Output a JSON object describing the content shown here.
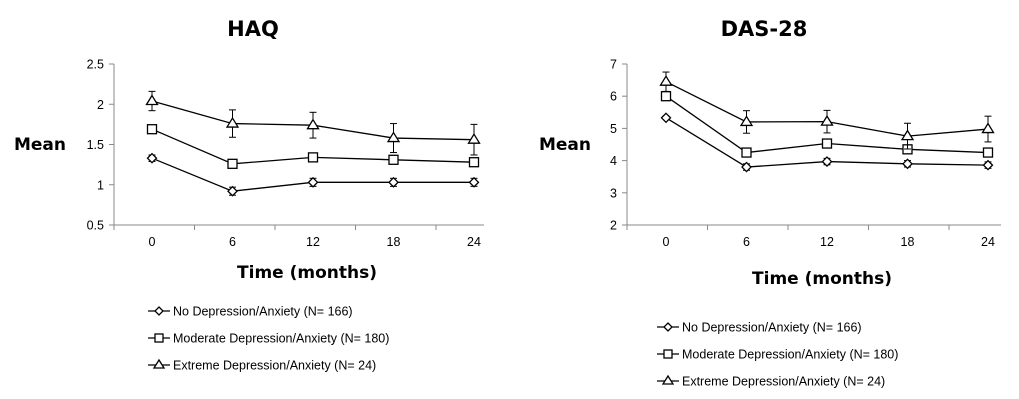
{
  "chart_data": [
    {
      "type": "line",
      "title": "HAQ",
      "xlabel": "Time (months)",
      "ylabel": "Mean",
      "x": [
        0,
        6,
        12,
        18,
        24
      ],
      "ylim": [
        0.5,
        2.5
      ],
      "yticks": [
        "0.5",
        "1",
        "1.5",
        "2",
        "2.5"
      ],
      "xticks": [
        "0",
        "6",
        "12",
        "18",
        "24"
      ],
      "grid": false,
      "legend_position": "bottom",
      "series": [
        {
          "name": "No Depression/Anxiety (N= 166)",
          "marker": "diamond",
          "values": [
            1.33,
            0.92,
            1.03,
            1.03,
            1.03
          ],
          "error": [
            0.04,
            0.05,
            0.05,
            0.05,
            0.05
          ]
        },
        {
          "name": "Moderate Depression/Anxiety (N= 180)",
          "marker": "square",
          "values": [
            1.69,
            1.26,
            1.34,
            1.31,
            1.28
          ],
          "error": [
            0.0,
            0.0,
            0.0,
            0.0,
            0.0
          ]
        },
        {
          "name": "Extreme Depression/Anxiety (N= 24)",
          "marker": "triangle",
          "values": [
            2.04,
            1.76,
            1.74,
            1.58,
            1.56
          ],
          "error": [
            0.12,
            0.17,
            0.16,
            0.18,
            0.19
          ]
        }
      ]
    },
    {
      "type": "line",
      "title": "DAS-28",
      "xlabel": "Time (months)",
      "ylabel": "Mean",
      "x": [
        0,
        6,
        12,
        18,
        24
      ],
      "ylim": [
        2,
        7
      ],
      "yticks": [
        "2",
        "3",
        "4",
        "5",
        "6",
        "7"
      ],
      "xticks": [
        "0",
        "6",
        "12",
        "18",
        "24"
      ],
      "grid": false,
      "legend_position": "bottom",
      "series": [
        {
          "name": "No Depression/Anxiety (N= 166)",
          "marker": "diamond",
          "values": [
            5.33,
            3.8,
            3.97,
            3.9,
            3.86
          ],
          "error": [
            0.05,
            0.1,
            0.1,
            0.1,
            0.1
          ]
        },
        {
          "name": "Moderate Depression/Anxiety (N= 180)",
          "marker": "square",
          "values": [
            6.0,
            4.25,
            4.53,
            4.35,
            4.25
          ],
          "error": [
            0.0,
            0.0,
            0.0,
            0.0,
            0.0
          ]
        },
        {
          "name": "Extreme Depression/Anxiety (N= 24)",
          "marker": "triangle",
          "values": [
            6.45,
            5.2,
            5.21,
            4.76,
            4.98
          ],
          "error": [
            0.3,
            0.35,
            0.35,
            0.4,
            0.4
          ]
        }
      ]
    }
  ],
  "colors": {
    "line": "#000000",
    "axis": "#888888"
  }
}
